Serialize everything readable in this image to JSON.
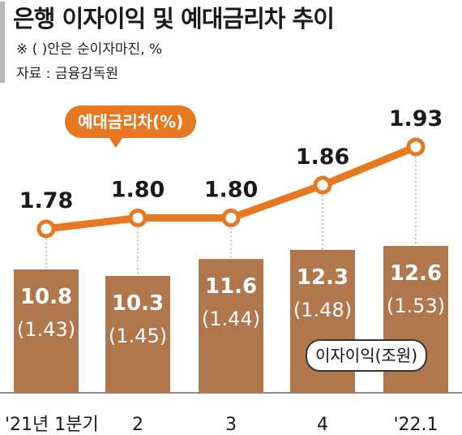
{
  "header": {
    "title": "은행 이자이익 및 예대금리차 추이",
    "note": "※ (  )안은 순이자마진, %",
    "source": "자료 : 금융감독원"
  },
  "colors": {
    "bar": "#b0764c",
    "line": "#e87722",
    "accent": "#b8b8b8"
  },
  "chart_data": {
    "type": "bar+line",
    "categories": [
      "'21년 1분기",
      "2",
      "3",
      "4",
      "'22.1"
    ],
    "series": [
      {
        "name": "이자이익(조원)",
        "type": "bar",
        "values": [
          10.8,
          10.3,
          11.6,
          12.3,
          12.6
        ],
        "secondary_labels": [
          "(1.43)",
          "(1.45)",
          "(1.44)",
          "(1.48)",
          "(1.53)"
        ]
      },
      {
        "name": "예대금리차(%)",
        "type": "line",
        "values": [
          1.78,
          1.8,
          1.8,
          1.86,
          1.93
        ],
        "labels": [
          "1.78",
          "1.80",
          "1.80",
          "1.86",
          "1.93"
        ]
      }
    ],
    "net_interest_margin": [
      1.43,
      1.45,
      1.44,
      1.48,
      1.53
    ],
    "legend": [
      "예대금리차(%)",
      "이자이익(조원)"
    ]
  }
}
